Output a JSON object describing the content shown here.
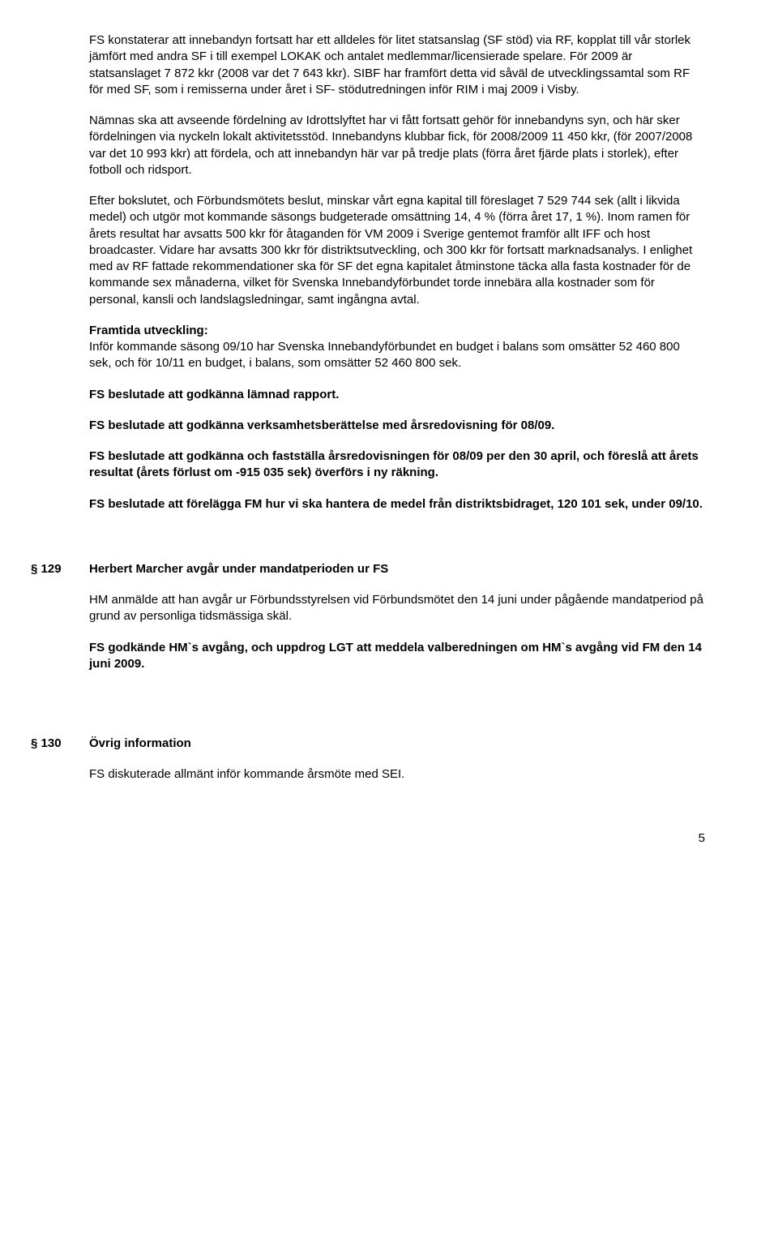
{
  "p1": "FS konstaterar att innebandyn fortsatt har ett alldeles för litet statsanslag (SF stöd) via RF, kopplat till vår storlek jämfört med andra SF i till exempel LOKAK och antalet medlemmar/licensierade spelare. För 2009 är statsanslaget 7 872 kkr (2008 var det 7 643 kkr). SIBF har framfört detta vid såväl de utvecklingssamtal som RF för med SF, som i remisserna under året i SF- stödutredningen inför RIM i maj 2009 i Visby.",
  "p2": "Nämnas ska att avseende fördelning av Idrottslyftet har vi fått fortsatt gehör för innebandyns syn, och här sker fördelningen via nyckeln lokalt aktivitetsstöd. Innebandyns klubbar fick, för 2008/2009 11 450 kkr, (för 2007/2008 var det 10 993 kkr) att fördela, och att innebandyn här var på tredje plats (förra året fjärde plats i storlek), efter fotboll och ridsport.",
  "p3": "Efter bokslutet, och Förbundsmötets beslut, minskar vårt egna kapital till föreslaget 7 529 744 sek (allt i likvida medel) och utgör mot kommande säsongs budgeterade omsättning 14, 4 % (förra året 17, 1 %). Inom ramen för årets resultat har avsatts 500 kkr för åtaganden för VM 2009 i Sverige gentemot framför allt IFF och host broadcaster. Vidare har avsatts 300 kkr för distriktsutveckling, och 300 kkr för fortsatt marknadsanalys. I enlighet med av RF fattade rekommendationer ska för SF det egna kapitalet åtminstone täcka alla fasta kostnader för de kommande sex månaderna, vilket för Svenska Innebandyförbundet torde innebära alla kostnader som för personal, kansli och landslagsledningar, samt ingångna avtal.",
  "p4_label": "Framtida utveckling:",
  "p4": "Inför kommande säsong 09/10 har Svenska Innebandyförbundet en budget i balans som omsätter 52 460 800 sek, och för 10/11 en budget, i balans, som omsätter 52 460 800 sek.",
  "p5": "FS beslutade att godkänna lämnad rapport.",
  "p6": "FS beslutade att godkänna verksamhetsberättelse med årsredovisning för 08/09.",
  "p7": "FS beslutade att godkänna och fastställa årsredovisningen för 08/09 per den 30 april, och föreslå att årets resultat (årets förlust om -915 035 sek) överförs i ny räkning.",
  "p8": "FS beslutade att förelägga FM hur vi ska hantera de medel från distriktsbidraget, 120 101 sek, under 09/10.",
  "s129": {
    "num": "§ 129",
    "title": "Herbert Marcher avgår under mandatperioden ur FS",
    "body": "HM anmälde att han avgår ur Förbundsstyrelsen vid Förbundsmötet den 14 juni under pågående mandatperiod på grund av personliga tidsmässiga skäl.",
    "bold": "FS godkände HM`s avgång, och uppdrog LGT att meddela valberedningen om HM`s avgång vid FM den 14 juni 2009."
  },
  "s130": {
    "num": "§ 130",
    "title": "Övrig information",
    "body": "FS diskuterade allmänt inför kommande årsmöte med SEI."
  },
  "pagenum": "5"
}
